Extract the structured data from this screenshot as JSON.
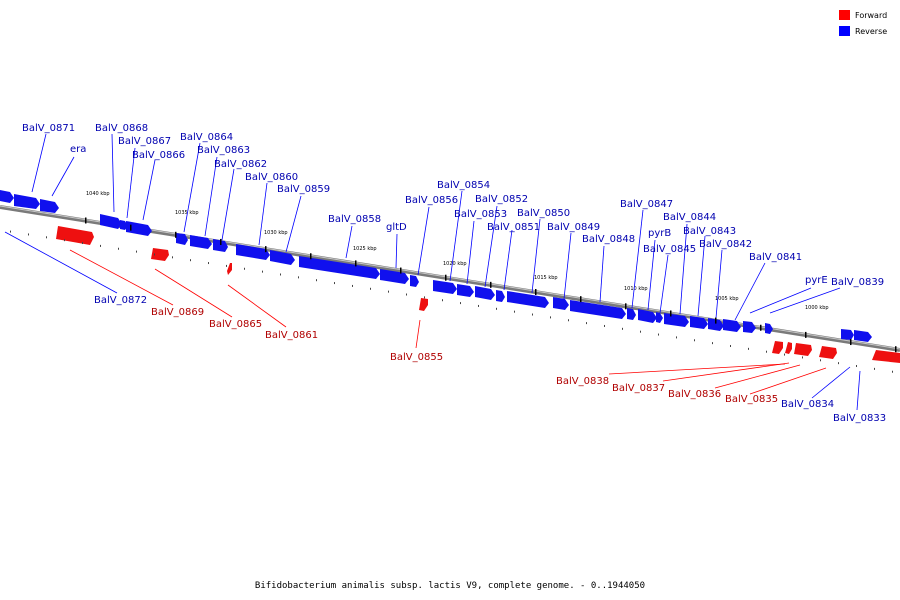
{
  "caption": "Bifidobacterium animalis subsp. lactis V9, complete genome. - 0..1944050",
  "legend": [
    {
      "label": "Forward",
      "color": "#ff0000"
    },
    {
      "label": "Reverse",
      "color": "#0000ff"
    }
  ],
  "colors": {
    "forward": "#ff0000",
    "reverse": "#1010ee",
    "forward_label": "#b00000",
    "reverse_label": "#0000b0"
  },
  "ticks": [
    "1040 kbp",
    "1035 kbp",
    "1030 kbp",
    "1025 kbp",
    "1020 kbp",
    "1015 kbp",
    "1010 kbp",
    "1005 kbp",
    "1000 kbp"
  ],
  "reverse_genes": [
    "BalV_0871",
    "era",
    "BalV_0868",
    "BalV_0867",
    "BalV_0866",
    "BalV_0864",
    "BalV_0863",
    "BalV_0862",
    "BalV_0860",
    "BalV_0859",
    "BalV_0858",
    "gltD",
    "BalV_0856",
    "BalV_0854",
    "BalV_0853",
    "BalV_0852",
    "BalV_0851",
    "BalV_0850",
    "BalV_0849",
    "BalV_0848",
    "BalV_0847",
    "pyrB",
    "BalV_0845",
    "BalV_0844",
    "BalV_0843",
    "BalV_0842",
    "BalV_0841",
    "pyrE",
    "BalV_0839",
    "BalV_0872",
    "BalV_0834",
    "BalV_0833"
  ],
  "forward_genes": [
    "BalV_0869",
    "BalV_0865",
    "BalV_0861",
    "BalV_0855",
    "BalV_0838",
    "BalV_0837",
    "BalV_0836",
    "BalV_0835"
  ]
}
